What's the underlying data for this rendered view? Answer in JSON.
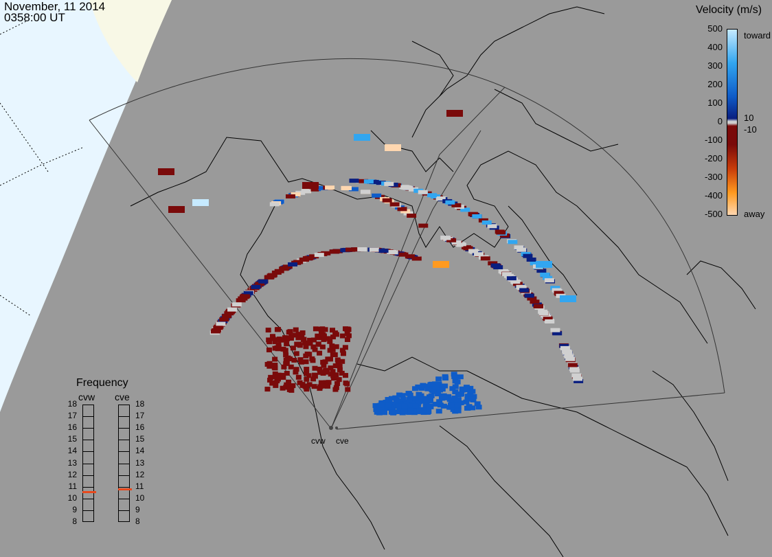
{
  "header": {
    "date": "November, 11 2014",
    "time": "0358:00 UT"
  },
  "velocity_scale": {
    "title": "Velocity (m/s)",
    "ticks": [
      "500",
      "400",
      "300",
      "200",
      "100",
      "0",
      "-100",
      "-200",
      "-300",
      "-400",
      "-500"
    ],
    "label_plus": "10",
    "label_minus": "-10",
    "toward_label": "toward",
    "away_label": "away",
    "colors": {
      "toward_max": "#c6eaff",
      "toward_high": "#32a6f0",
      "toward_mid": "#0f5cc8",
      "toward_low": "#0a1f80",
      "ground_scatter": "#d0d0d0",
      "away_low": "#7a0a0a",
      "away_mid": "#c83c0a",
      "away_high": "#ff9a20",
      "away_max": "#ffd7b0"
    }
  },
  "frequency": {
    "title": "Frequency",
    "radars": [
      "cvw",
      "cve"
    ],
    "scale": [
      "18",
      "17",
      "16",
      "15",
      "14",
      "13",
      "12",
      "11",
      "10",
      "9",
      "8"
    ],
    "values": [
      10.6,
      10.8
    ],
    "marker_color": "#e8491d"
  },
  "radar_sites": {
    "cvw_label": "cvw",
    "cve_label": "cve"
  },
  "map_colors": {
    "background": "#9a9a9a",
    "daylight_ocean": "#e8f6ff",
    "daylight_land": "#f8f8e6",
    "coastline": "#000000",
    "fov_line": "#333333"
  }
}
